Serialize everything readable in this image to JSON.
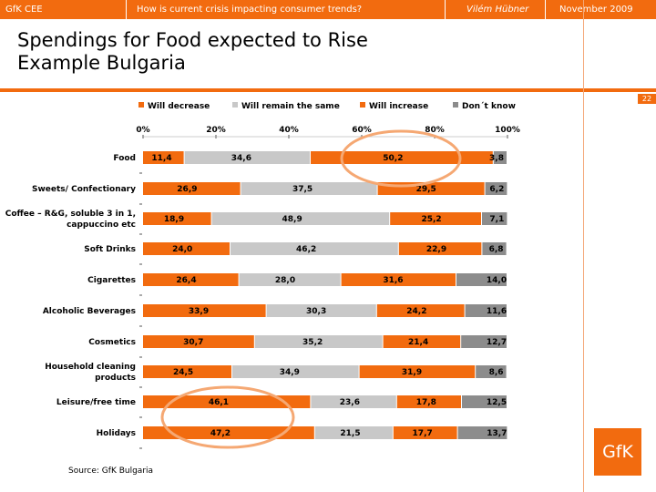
{
  "header": {
    "company": "GfK CEE",
    "subtitle": "How is current crisis impacting consumer trends?",
    "author": "Vilém Hübner",
    "date": "November  2009"
  },
  "title": {
    "line1": "Spendings for Food expected to Rise",
    "line2": "Example Bulgaria"
  },
  "page_number": "22",
  "source": "Source: GfK Bulgaria",
  "logo_text": "GfK",
  "colors": {
    "brand": "#f26b0f",
    "remain": "#c8c8c8",
    "dontknow": "#8c8c8c"
  },
  "chart_data": {
    "type": "bar",
    "orientation": "horizontal",
    "stacked": "100%",
    "categories": [
      "Food",
      "Sweets/ Confectionary",
      "Coffee – R&G, soluble 3 in 1, cappuccino etc",
      "Soft Drinks",
      "Cigarettes",
      "Alcoholic Beverages",
      "Cosmetics",
      "Household cleaning products",
      "Leisure/free time",
      "Holidays"
    ],
    "series": [
      {
        "name": "Will decrease",
        "color": "#f26b0f",
        "values": [
          11.4,
          26.9,
          18.9,
          24.0,
          26.4,
          33.9,
          30.7,
          24.5,
          46.1,
          47.2
        ],
        "labels": [
          "11,4",
          "26,9",
          "18,9",
          "24,0",
          "26,4",
          "33,9",
          "30,7",
          "24,5",
          "46,1",
          "47,2"
        ]
      },
      {
        "name": "Will remain the same",
        "color": "#c8c8c8",
        "values": [
          34.6,
          37.5,
          48.9,
          46.2,
          28.0,
          30.3,
          35.2,
          34.9,
          23.6,
          21.5
        ],
        "labels": [
          "34,6",
          "37,5",
          "48,9",
          "46,2",
          "28,0",
          "30,3",
          "35,2",
          "34,9",
          "23,6",
          "21,5"
        ]
      },
      {
        "name": "Will increase",
        "color": "#f26b0f",
        "values": [
          50.2,
          29.5,
          25.2,
          22.9,
          31.6,
          24.2,
          21.4,
          31.9,
          17.8,
          17.7
        ],
        "labels": [
          "50,2",
          "29,5",
          "25,2",
          "22,9",
          "31,6",
          "24,2",
          "21,4",
          "31,9",
          "17,8",
          "17,7"
        ]
      },
      {
        "name": "Don´t know",
        "color": "#8c8c8c",
        "values": [
          3.8,
          6.2,
          7.1,
          6.8,
          14.0,
          11.6,
          12.7,
          8.6,
          12.5,
          13.7
        ],
        "labels": [
          "3,8",
          "6,2",
          "7,1",
          "6,8",
          "14,0",
          "11,6",
          "12,7",
          "8,6",
          "12,5",
          "13,7"
        ]
      }
    ],
    "xaxis": {
      "ticks": [
        0,
        20,
        40,
        60,
        80,
        100
      ],
      "tick_labels": [
        "0%",
        "20%",
        "40%",
        "60%",
        "80%",
        "100%"
      ],
      "range": [
        0,
        100
      ],
      "position": "top"
    },
    "legend_position": "top",
    "grid": false,
    "annotations": [
      {
        "type": "ellipse",
        "description": "highlight on Food – Will increase"
      },
      {
        "type": "ellipse",
        "description": "highlight on Leisure/free time and Holidays – Will decrease"
      }
    ]
  }
}
